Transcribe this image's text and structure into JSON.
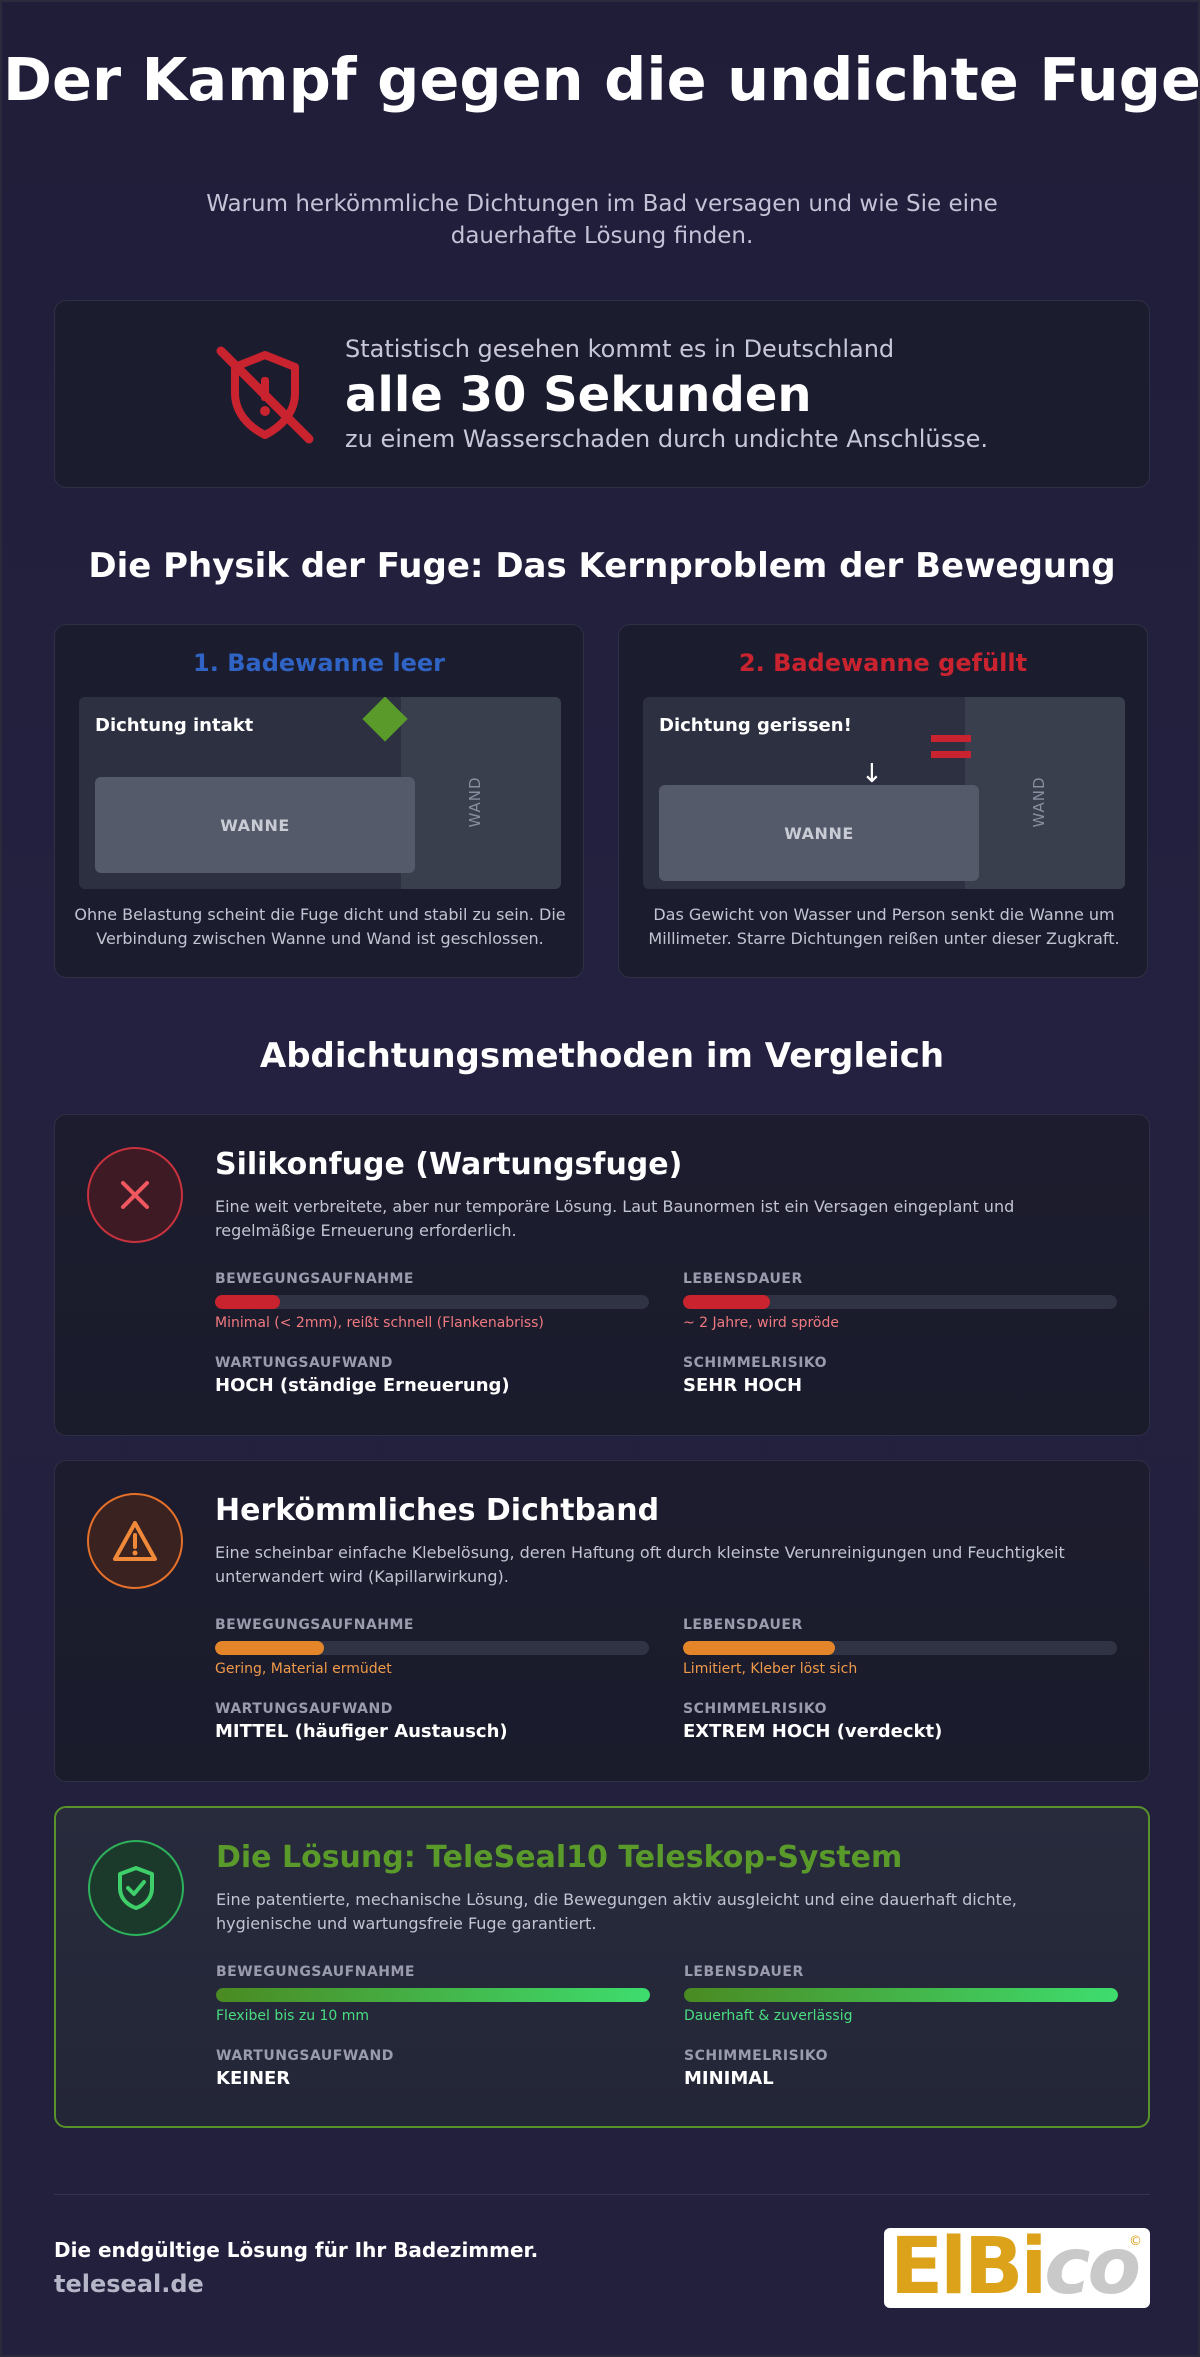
{
  "header": {
    "title": "Der Kampf gegen die undichte Fuge",
    "subtitle": "Warum herkömmliche Dichtungen im Bad versagen und wie Sie eine dauerhafte Lösung finden."
  },
  "stat": {
    "icon": "shield-off-icon",
    "pre": "Statistisch gesehen kommt es in Deutschland",
    "big": "alle 30 Sekunden",
    "post": "zu einem Wasserschaden durch undichte Anschlüsse."
  },
  "physics": {
    "heading": "Die Physik der Fuge: Das Kernproblem der Bewegung",
    "cards": [
      {
        "title": "1. Badewanne leer",
        "title_color": "#2f63c4",
        "scene_label": "Dichtung intakt",
        "tub_label": "WANNE",
        "wall_label": "WAND",
        "desc": "Ohne Belastung scheint die Fuge dicht und stabil zu sein. Die Verbindung zwischen Wanne und Wand ist geschlossen."
      },
      {
        "title": "2. Badewanne gefüllt",
        "title_color": "#c8232e",
        "scene_label": "Dichtung gerissen!",
        "tub_label": "WANNE",
        "wall_label": "WAND",
        "arrow": "↓",
        "desc": "Das Gewicht von Wasser und Person senkt die Wanne um Millimeter. Starre Dichtungen reißen unter dieser Zugkraft."
      }
    ]
  },
  "comparison": {
    "heading": "Abdichtungsmethoden im Vergleich",
    "methods": [
      {
        "icon": "x-icon",
        "title": "Silikonfuge (Wartungsfuge)",
        "desc": "Eine weit verbreitete, aber nur temporäre Lösung. Laut Baunormen ist ein Versagen eingeplant und regelmäßige Erneuerung erforderlich.",
        "movement_label": "BEWEGUNGSAUFNAHME",
        "movement_level": 0.15,
        "movement_note": "Minimal (< 2mm), reißt schnell (Flankenabriss)",
        "lifespan_label": "LEBENSDAUER",
        "lifespan_level": 0.2,
        "lifespan_note": "~ 2 Jahre, wird spröde",
        "maintenance_label": "WARTUNGSAUFWAND",
        "maintenance_value": "HOCH (ständige Erneuerung)",
        "mold_label": "SCHIMMELRISIKO",
        "mold_value": "SEHR HOCH",
        "accent": "#c8232e",
        "note_color": "#f07a80"
      },
      {
        "icon": "warning-icon",
        "title": "Herkömmliches Dichtband",
        "desc": "Eine scheinbar einfache Klebelösung, deren Haftung oft durch kleinste Verunreinigungen und Feuchtigkeit unterwandert wird (Kapillarwirkung).",
        "movement_label": "BEWEGUNGSAUFNAHME",
        "movement_level": 0.25,
        "movement_note": "Gering, Material ermüdet",
        "lifespan_label": "LEBENSDAUER",
        "lifespan_level": 0.35,
        "lifespan_note": "Limitiert, Kleber löst sich",
        "maintenance_label": "WARTUNGSAUFWAND",
        "maintenance_value": "MITTEL (häufiger Austausch)",
        "mold_label": "SCHIMMELRISIKO",
        "mold_value": "EXTREM HOCH (verdeckt)",
        "accent": "#e5852a",
        "note_color": "#f09a4a"
      },
      {
        "icon": "shield-check-icon",
        "title": "Die Lösung: TeleSeal10 Teleskop-System",
        "desc": "Eine patentierte, mechanische Lösung, die Bewegungen aktiv ausgleicht und eine dauerhaft dichte, hygienische und wartungsfreie Fuge garantiert.",
        "movement_label": "BEWEGUNGSAUFNAHME",
        "movement_level": 1.0,
        "movement_note": "Flexibel bis zu 10 mm",
        "lifespan_label": "LEBENSDAUER",
        "lifespan_level": 1.0,
        "lifespan_note": "Dauerhaft & zuverlässig",
        "maintenance_label": "WARTUNGSAUFWAND",
        "maintenance_value": "KEINER",
        "mold_label": "SCHIMMELRISIKO",
        "mold_value": "MINIMAL",
        "accent": "#3ecf6a",
        "note_color": "#4ade80",
        "title_color": "#5a9a2a"
      }
    ]
  },
  "footer": {
    "tagline": "Die endgültige Lösung für Ihr Badezimmer.",
    "url": "teleseal.de",
    "logo_part1": "ElBi",
    "logo_part2": "co",
    "logo_mark": "©"
  }
}
